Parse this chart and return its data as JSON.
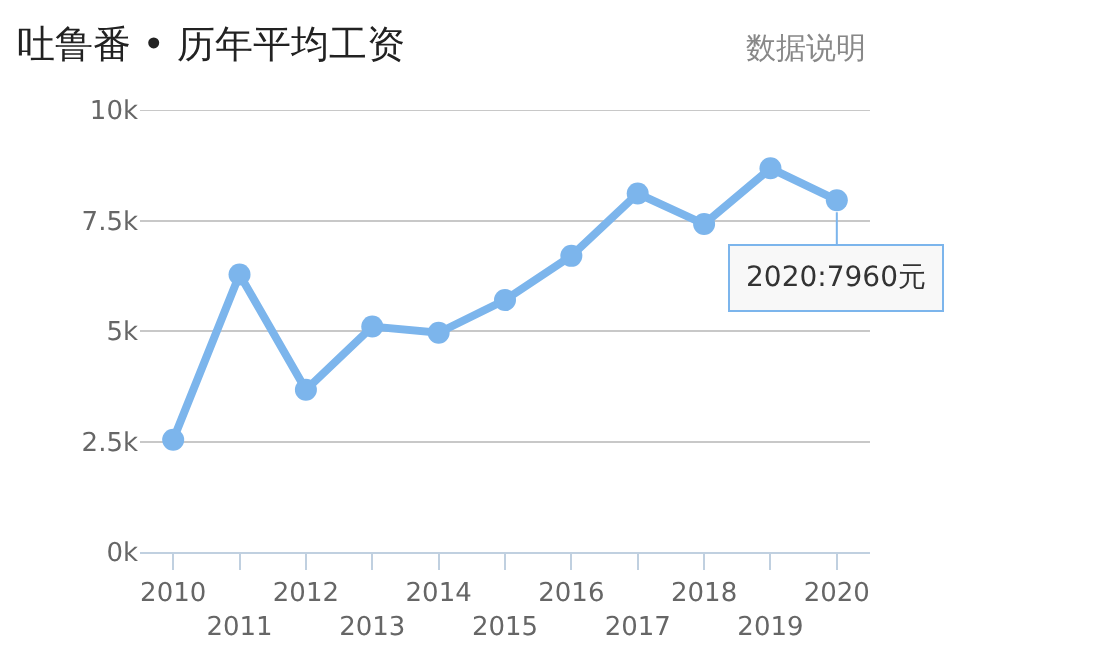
{
  "chart_data": {
    "type": "line",
    "title": "吐鲁番 • 历年平均工资",
    "annotations": [
      "数据说明",
      {
        "text": "2020:7960元",
        "x": "2020",
        "y": 7960
      }
    ],
    "categories": [
      "2010",
      "2011",
      "2012",
      "2013",
      "2014",
      "2015",
      "2016",
      "2017",
      "2018",
      "2019",
      "2020"
    ],
    "series": [
      {
        "color": "#7cb5ec",
        "values": [
          2540,
          6280,
          3670,
          5100,
          4960,
          5700,
          6700,
          8110,
          7420,
          8680,
          7960
        ]
      }
    ],
    "ylim": [
      0,
      10000
    ],
    "yticks": [
      {
        "value": 0,
        "label": "0k"
      },
      {
        "value": 2500,
        "label": "2.5k"
      },
      {
        "value": 5000,
        "label": "5k"
      },
      {
        "value": 7500,
        "label": "7.5k"
      },
      {
        "value": 10000,
        "label": "10k"
      }
    ],
    "grid": "y",
    "marker": "circle",
    "line_style": "solid"
  }
}
